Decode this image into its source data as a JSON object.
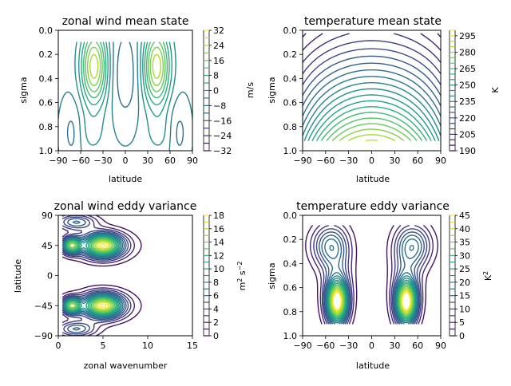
{
  "chart_data": [
    {
      "type": "contour",
      "title": "zonal wind mean state",
      "xlabel": "latitude",
      "ylabel": "sigma",
      "x_ticks": [
        "−90",
        "−60",
        "−30",
        "0",
        "30",
        "60",
        "90"
      ],
      "y_ticks": [
        "0.0",
        "0.2",
        "0.4",
        "0.6",
        "0.8",
        "1.0"
      ],
      "xlim": [
        -90,
        90
      ],
      "ylim": [
        1.0,
        0.0
      ],
      "y_inverted": true,
      "colorbar": {
        "label": "m/s",
        "levels": [
          -32,
          -28,
          -24,
          -20,
          -16,
          -12,
          -8,
          -4,
          0,
          4,
          8,
          12,
          16,
          20,
          24,
          28,
          32
        ],
        "tick_labels": [
          "−32",
          "−24",
          "−16",
          "−8",
          "0",
          "8",
          "16",
          "24",
          "32"
        ],
        "tick_values": [
          -32,
          -24,
          -16,
          -8,
          0,
          8,
          16,
          24,
          32
        ]
      },
      "colormap": "viridis"
    },
    {
      "type": "contour",
      "title": "temperature mean state",
      "xlabel": "latitude",
      "ylabel": "sigma",
      "x_ticks": [
        "−90",
        "−60",
        "−30",
        "0",
        "30",
        "60",
        "90"
      ],
      "y_ticks": [
        "0.0",
        "0.2",
        "0.4",
        "0.6",
        "0.8",
        "1.0"
      ],
      "xlim": [
        -90,
        90
      ],
      "ylim": [
        1.0,
        0.0
      ],
      "y_inverted": true,
      "colorbar": {
        "label": "K",
        "levels": [
          190,
          195,
          200,
          205,
          210,
          215,
          220,
          225,
          230,
          235,
          240,
          245,
          250,
          255,
          260,
          265,
          270,
          275,
          280,
          285,
          290,
          295,
          300
        ],
        "tick_labels": [
          "190",
          "205",
          "220",
          "235",
          "250",
          "265",
          "280",
          "295"
        ],
        "tick_values": [
          190,
          205,
          220,
          235,
          250,
          265,
          280,
          295
        ]
      },
      "colormap": "viridis"
    },
    {
      "type": "contour",
      "title": "zonal wind eddy variance",
      "xlabel": "zonal wavenumber",
      "ylabel": "latitude",
      "x_ticks": [
        "0",
        "5",
        "10",
        "15"
      ],
      "y_ticks": [
        "90",
        "45",
        "0",
        "−45",
        "−90"
      ],
      "xlim": [
        0,
        15
      ],
      "ylim": [
        -90,
        90
      ],
      "colorbar": {
        "label": "m² s⁻²",
        "label_main": "m",
        "label_sup1": "2",
        "label_mid": " s",
        "label_sup2": "−2",
        "levels": [
          0,
          1,
          2,
          3,
          4,
          5,
          6,
          7,
          8,
          9,
          10,
          11,
          12,
          13,
          14,
          15,
          16,
          17,
          18
        ],
        "tick_labels": [
          "0",
          "2",
          "4",
          "6",
          "8",
          "10",
          "12",
          "14",
          "16",
          "18"
        ],
        "tick_values": [
          0,
          2,
          4,
          6,
          8,
          10,
          12,
          14,
          16,
          18
        ]
      },
      "colormap": "viridis"
    },
    {
      "type": "contour",
      "title": "temperature eddy variance",
      "xlabel": "latitude",
      "ylabel": "sigma",
      "x_ticks": [
        "−90",
        "−60",
        "−30",
        "0",
        "30",
        "60",
        "90"
      ],
      "y_ticks": [
        "0.0",
        "0.2",
        "0.4",
        "0.6",
        "0.8",
        "1.0"
      ],
      "xlim": [
        -90,
        90
      ],
      "ylim": [
        1.0,
        0.0
      ],
      "y_inverted": true,
      "colorbar": {
        "label": "K²",
        "label_main": "K",
        "label_sup1": "2",
        "levels": [
          0,
          2.5,
          5,
          7.5,
          10,
          12.5,
          15,
          17.5,
          20,
          22.5,
          25,
          27.5,
          30,
          32.5,
          35,
          37.5,
          40,
          42.5,
          45
        ],
        "tick_labels": [
          "0",
          "5",
          "10",
          "15",
          "20",
          "25",
          "30",
          "35",
          "40",
          "45"
        ],
        "tick_values": [
          0,
          5,
          10,
          15,
          20,
          25,
          30,
          35,
          40,
          45
        ]
      },
      "colormap": "viridis"
    }
  ]
}
